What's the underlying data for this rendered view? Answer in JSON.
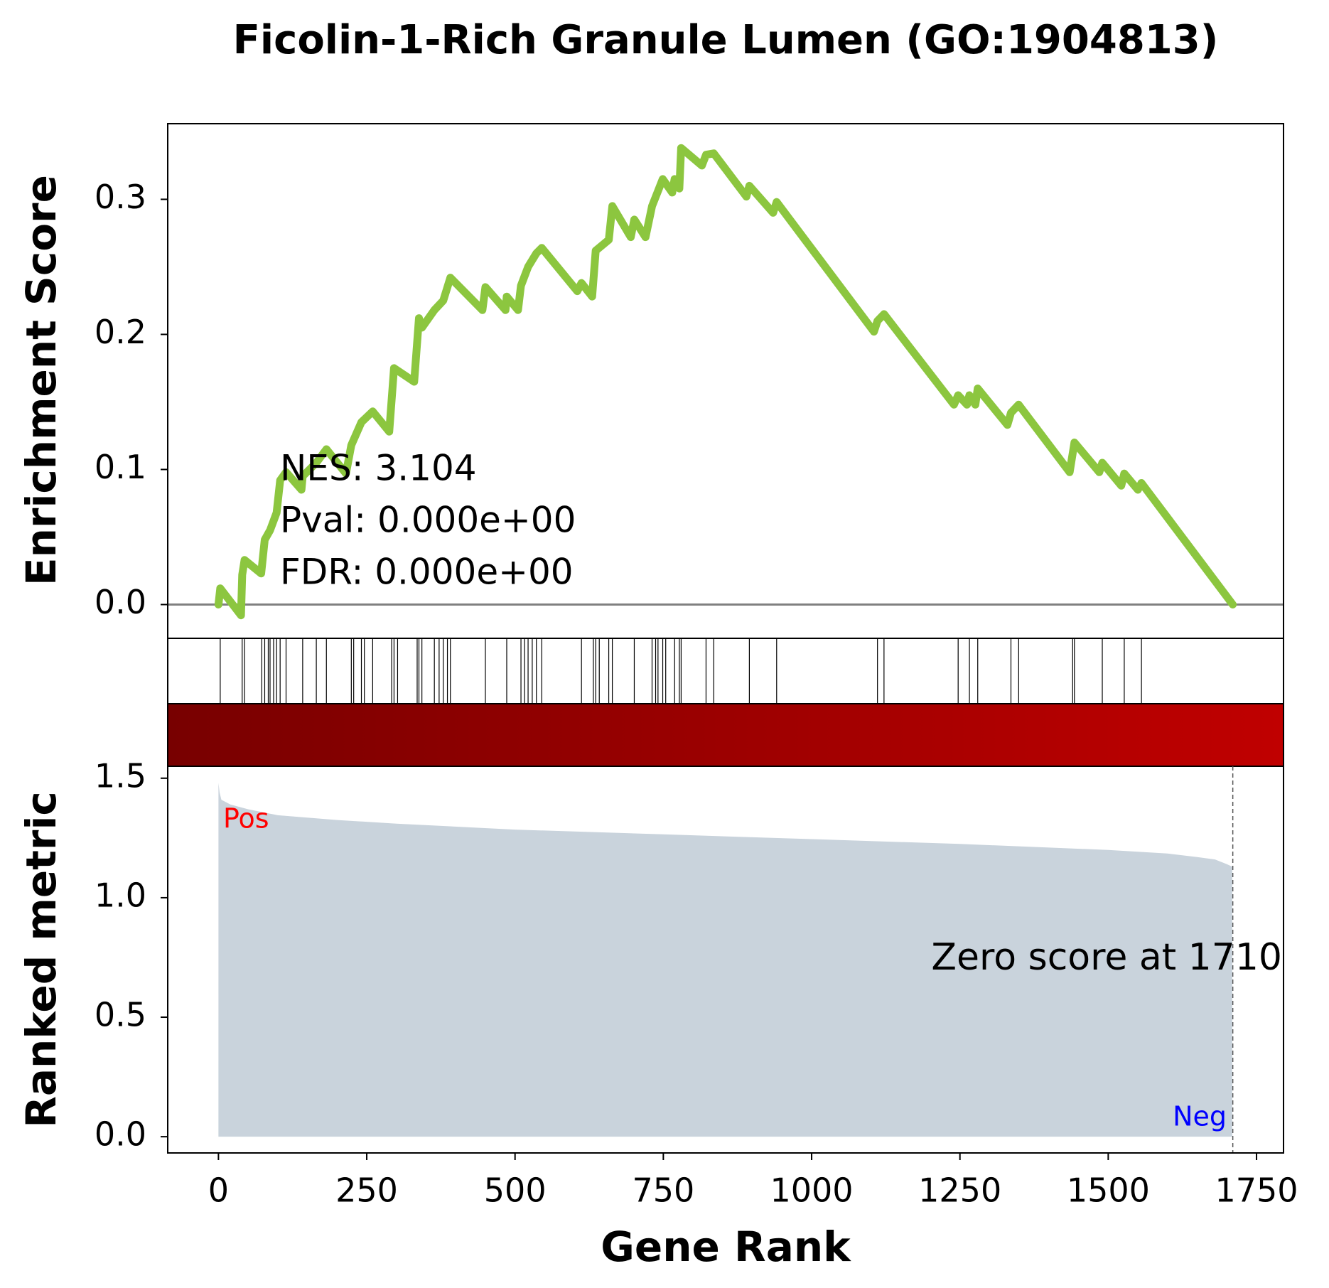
{
  "chart_data": [
    {
      "type": "line",
      "title": "Ficolin-1-Rich Granule Lumen (GO:1904813)",
      "ylabel": "Enrichment Score",
      "color": "#8cc63f",
      "xlim": [
        -85.5,
        1795.5
      ],
      "ylim": [
        -0.025,
        0.356
      ],
      "yticks": [
        {
          "value": 0,
          "label": "0.0"
        },
        {
          "value": 0.1,
          "label": "0.1"
        },
        {
          "value": 0.2,
          "label": "0.2"
        },
        {
          "value": 0.3,
          "label": "0.3"
        }
      ],
      "annotations": [
        "NES: 3.104",
        "Pval: 0.000e+00",
        "FDR: 0.000e+00"
      ],
      "x": [
        0,
        3,
        38,
        40,
        44,
        72,
        78,
        87,
        98,
        104,
        114,
        140,
        142,
        165,
        182,
        215,
        224,
        241,
        260,
        288,
        296,
        330,
        338,
        343,
        364,
        379,
        391,
        445,
        450,
        484,
        486,
        505,
        510,
        522,
        536,
        545,
        605,
        612,
        630,
        636,
        658,
        664,
        695,
        701,
        720,
        731,
        749,
        765,
        769,
        777,
        780,
        815,
        822,
        835,
        890,
        895,
        935,
        941,
        1105,
        1111,
        1122,
        1240,
        1247,
        1262,
        1266,
        1276,
        1280,
        1330,
        1336,
        1349,
        1435,
        1443,
        1485,
        1490,
        1522,
        1527,
        1550,
        1556,
        1710
      ],
      "values": [
        0,
        0.012,
        -0.008,
        0.022,
        0.033,
        0.023,
        0.048,
        0.055,
        0.068,
        0.092,
        0.098,
        0.085,
        0.095,
        0.105,
        0.115,
        0.097,
        0.118,
        0.135,
        0.143,
        0.128,
        0.175,
        0.165,
        0.212,
        0.205,
        0.218,
        0.225,
        0.242,
        0.218,
        0.235,
        0.218,
        0.228,
        0.218,
        0.236,
        0.25,
        0.26,
        0.264,
        0.232,
        0.238,
        0.228,
        0.262,
        0.27,
        0.295,
        0.272,
        0.285,
        0.272,
        0.295,
        0.315,
        0.305,
        0.315,
        0.308,
        0.338,
        0.325,
        0.333,
        0.334,
        0.302,
        0.31,
        0.29,
        0.298,
        0.202,
        0.21,
        0.215,
        0.148,
        0.155,
        0.148,
        0.155,
        0.148,
        0.16,
        0.133,
        0.142,
        0.148,
        0.098,
        0.12,
        0.098,
        0.105,
        0.088,
        0.097,
        0.085,
        0.09,
        0
      ]
    },
    {
      "type": "rug",
      "color": "#000000",
      "xlim": [
        -85.5,
        1795.5
      ],
      "colorbar": [
        "#780000",
        "#c00000"
      ],
      "x": [
        3,
        40,
        44,
        73,
        78,
        84,
        87,
        93,
        98,
        104,
        114,
        142,
        165,
        182,
        224,
        228,
        241,
        246,
        260,
        292,
        296,
        302,
        335,
        338,
        343,
        364,
        372,
        379,
        386,
        391,
        450,
        486,
        510,
        516,
        522,
        529,
        536,
        545,
        612,
        632,
        636,
        642,
        658,
        664,
        701,
        731,
        737,
        741,
        749,
        754,
        769,
        777,
        780,
        822,
        835,
        895,
        941,
        1111,
        1122,
        1247,
        1266,
        1280,
        1336,
        1349,
        1440,
        1443,
        1490,
        1527,
        1556
      ]
    },
    {
      "type": "area",
      "ylabel": "Ranked metric",
      "xlabel": "Gene Rank",
      "color": "#c9d3dc",
      "xlim": [
        -85.5,
        1795.5
      ],
      "ylim": [
        -0.068,
        1.55
      ],
      "xticks": [
        0,
        250,
        500,
        750,
        1000,
        1250,
        1500,
        1750
      ],
      "yticks": [
        {
          "value": 0,
          "label": "0.0"
        },
        {
          "value": 0.5,
          "label": "0.5"
        },
        {
          "value": 1,
          "label": "1.0"
        },
        {
          "value": 1.5,
          "label": "1.5"
        }
      ],
      "pos_label": "Pos",
      "neg_label": "Neg",
      "zero_label": "Zero score at 1710",
      "zero_rank": 1710,
      "x": [
        0,
        2,
        5,
        20,
        50,
        100,
        200,
        300,
        500,
        750,
        1000,
        1250,
        1500,
        1600,
        1650,
        1680,
        1700,
        1709
      ],
      "values": [
        1.48,
        1.44,
        1.41,
        1.39,
        1.37,
        1.345,
        1.325,
        1.31,
        1.285,
        1.265,
        1.245,
        1.225,
        1.2,
        1.185,
        1.17,
        1.16,
        1.14,
        1.13
      ]
    }
  ]
}
